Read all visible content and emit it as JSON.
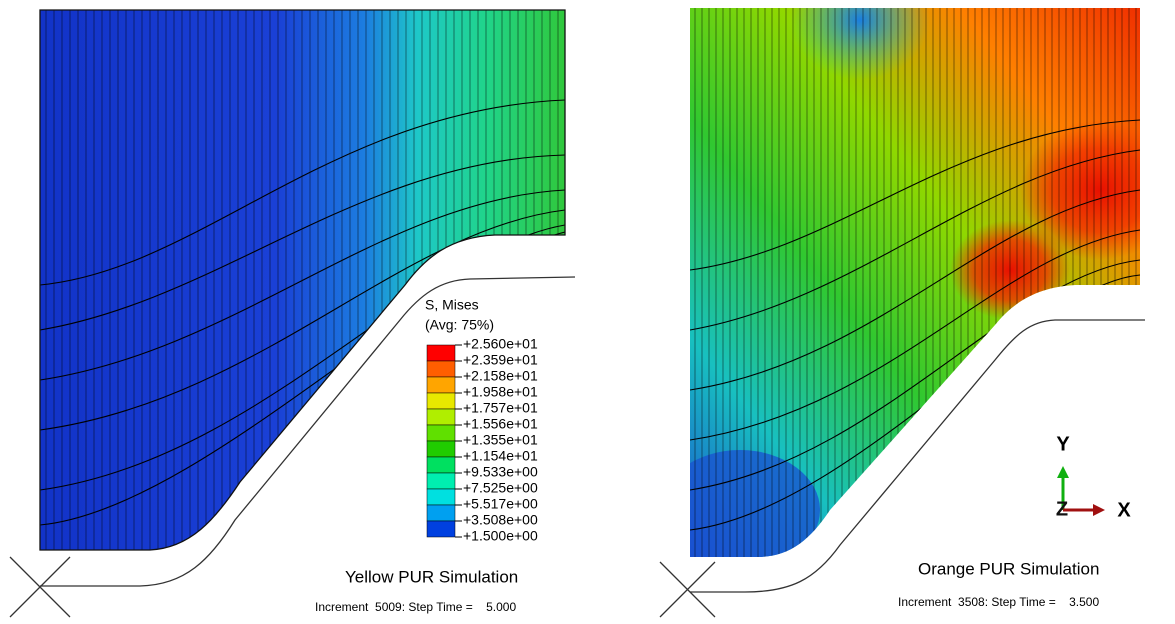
{
  "left_panel": {
    "caption": "Yellow PUR Simulation",
    "increment": "Increment  5009: Step Time =    5.000",
    "legend": {
      "title": "S, Mises",
      "subtitle": "(Avg: 75%)",
      "labels": [
        "+2.560e+01",
        "+2.359e+01",
        "+2.158e+01",
        "+1.958e+01",
        "+1.757e+01",
        "+1.556e+01",
        "+1.355e+01",
        "+1.154e+01",
        "+9.533e+00",
        "+7.525e+00",
        "+5.517e+00",
        "+3.508e+00",
        "+1.500e+00"
      ],
      "colors": [
        "#ff0000",
        "#ff5e00",
        "#ffa500",
        "#e8e800",
        "#b0ee00",
        "#60e000",
        "#20cc00",
        "#00e060",
        "#00eeb0",
        "#00e0e0",
        "#00a0f0",
        "#0040e0"
      ]
    }
  },
  "right_panel": {
    "caption": "Orange PUR Simulation",
    "increment": "Increment  3508: Step Time =    3.500",
    "triad": {
      "y": "Y",
      "z": "Z",
      "x": "X"
    }
  }
}
